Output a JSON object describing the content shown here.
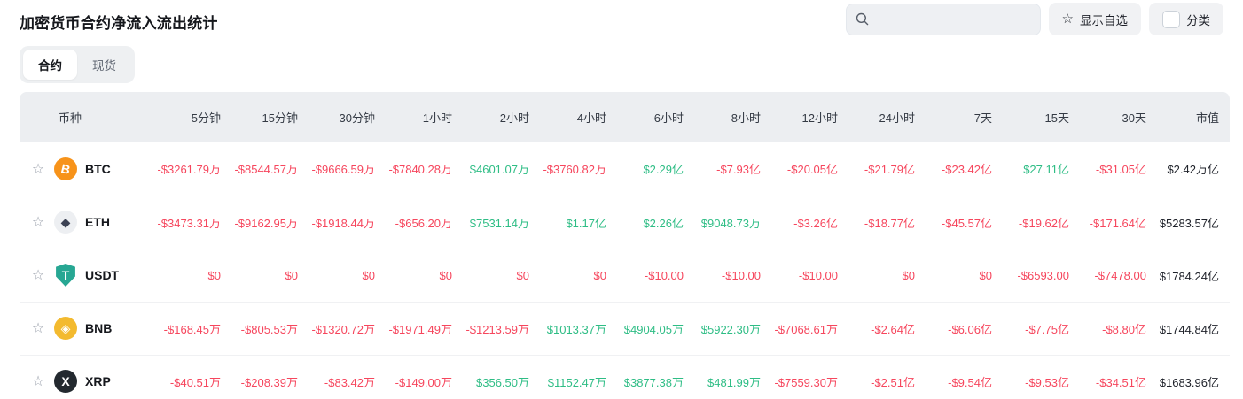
{
  "page": {
    "title": "加密货币合约净流入流出统计",
    "search_placeholder": "",
    "show_watchlist_label": "显示自选",
    "category_label": "分类"
  },
  "colors": {
    "positive": "#2ebd85",
    "negative": "#f6465d",
    "header_bg": "#eceef1"
  },
  "tabs": [
    {
      "label": "合约",
      "active": true
    },
    {
      "label": "现货",
      "active": false
    }
  ],
  "table": {
    "columns": [
      "币种",
      "5分钟",
      "15分钟",
      "30分钟",
      "1小时",
      "2小时",
      "4小时",
      "6小时",
      "8小时",
      "12小时",
      "24小时",
      "7天",
      "15天",
      "30天",
      "市值"
    ],
    "rows": [
      {
        "symbol": "BTC",
        "icon": {
          "glyph": "B",
          "bg": "#f7931a",
          "fg": "#ffffff",
          "shape": "circle",
          "tilt": true
        },
        "values": [
          {
            "text": "-$3261.79万",
            "color": "neg"
          },
          {
            "text": "-$8544.57万",
            "color": "neg"
          },
          {
            "text": "-$9666.59万",
            "color": "neg"
          },
          {
            "text": "-$7840.28万",
            "color": "neg"
          },
          {
            "text": "$4601.07万",
            "color": "pos"
          },
          {
            "text": "-$3760.82万",
            "color": "neg"
          },
          {
            "text": "$2.29亿",
            "color": "pos"
          },
          {
            "text": "-$7.93亿",
            "color": "neg"
          },
          {
            "text": "-$20.05亿",
            "color": "neg"
          },
          {
            "text": "-$21.79亿",
            "color": "neg"
          },
          {
            "text": "-$23.42亿",
            "color": "neg"
          },
          {
            "text": "$27.11亿",
            "color": "pos"
          },
          {
            "text": "-$31.05亿",
            "color": "neg"
          }
        ],
        "market_cap": "$2.42万亿"
      },
      {
        "symbol": "ETH",
        "icon": {
          "glyph": "◆",
          "bg": "#edeff2",
          "fg": "#3c4254",
          "shape": "circle",
          "tilt": false
        },
        "values": [
          {
            "text": "-$3473.31万",
            "color": "neg"
          },
          {
            "text": "-$9162.95万",
            "color": "neg"
          },
          {
            "text": "-$1918.44万",
            "color": "neg"
          },
          {
            "text": "-$656.20万",
            "color": "neg"
          },
          {
            "text": "$7531.14万",
            "color": "pos"
          },
          {
            "text": "$1.17亿",
            "color": "pos"
          },
          {
            "text": "$2.26亿",
            "color": "pos"
          },
          {
            "text": "$9048.73万",
            "color": "pos"
          },
          {
            "text": "-$3.26亿",
            "color": "neg"
          },
          {
            "text": "-$18.77亿",
            "color": "neg"
          },
          {
            "text": "-$45.57亿",
            "color": "neg"
          },
          {
            "text": "-$19.62亿",
            "color": "neg"
          },
          {
            "text": "-$171.64亿",
            "color": "neg"
          }
        ],
        "market_cap": "$5283.57亿"
      },
      {
        "symbol": "USDT",
        "icon": {
          "glyph": "T",
          "bg": "#27a793",
          "fg": "#ffffff",
          "shape": "shield",
          "tilt": false
        },
        "values": [
          {
            "text": "$0",
            "color": "neg"
          },
          {
            "text": "$0",
            "color": "neg"
          },
          {
            "text": "$0",
            "color": "neg"
          },
          {
            "text": "$0",
            "color": "neg"
          },
          {
            "text": "$0",
            "color": "neg"
          },
          {
            "text": "$0",
            "color": "neg"
          },
          {
            "text": "-$10.00",
            "color": "neg"
          },
          {
            "text": "-$10.00",
            "color": "neg"
          },
          {
            "text": "-$10.00",
            "color": "neg"
          },
          {
            "text": "$0",
            "color": "neg"
          },
          {
            "text": "$0",
            "color": "neg"
          },
          {
            "text": "-$6593.00",
            "color": "neg"
          },
          {
            "text": "-$7478.00",
            "color": "neg"
          }
        ],
        "market_cap": "$1784.24亿"
      },
      {
        "symbol": "BNB",
        "icon": {
          "glyph": "◈",
          "bg": "#f3ba2f",
          "fg": "#ffffff",
          "shape": "circle",
          "tilt": false
        },
        "values": [
          {
            "text": "-$168.45万",
            "color": "neg"
          },
          {
            "text": "-$805.53万",
            "color": "neg"
          },
          {
            "text": "-$1320.72万",
            "color": "neg"
          },
          {
            "text": "-$1971.49万",
            "color": "neg"
          },
          {
            "text": "-$1213.59万",
            "color": "neg"
          },
          {
            "text": "$1013.37万",
            "color": "pos"
          },
          {
            "text": "$4904.05万",
            "color": "pos"
          },
          {
            "text": "$5922.30万",
            "color": "pos"
          },
          {
            "text": "-$7068.61万",
            "color": "neg"
          },
          {
            "text": "-$2.64亿",
            "color": "neg"
          },
          {
            "text": "-$6.06亿",
            "color": "neg"
          },
          {
            "text": "-$7.75亿",
            "color": "neg"
          },
          {
            "text": "-$8.80亿",
            "color": "neg"
          }
        ],
        "market_cap": "$1744.84亿"
      },
      {
        "symbol": "XRP",
        "icon": {
          "glyph": "X",
          "bg": "#23292f",
          "fg": "#ffffff",
          "shape": "circle",
          "tilt": false
        },
        "values": [
          {
            "text": "-$40.51万",
            "color": "neg"
          },
          {
            "text": "-$208.39万",
            "color": "neg"
          },
          {
            "text": "-$83.42万",
            "color": "neg"
          },
          {
            "text": "-$149.00万",
            "color": "neg"
          },
          {
            "text": "$356.50万",
            "color": "pos"
          },
          {
            "text": "$1152.47万",
            "color": "pos"
          },
          {
            "text": "$3877.38万",
            "color": "pos"
          },
          {
            "text": "$481.99万",
            "color": "pos"
          },
          {
            "text": "-$7559.30万",
            "color": "neg"
          },
          {
            "text": "-$2.51亿",
            "color": "neg"
          },
          {
            "text": "-$9.54亿",
            "color": "neg"
          },
          {
            "text": "-$9.53亿",
            "color": "neg"
          },
          {
            "text": "-$34.51亿",
            "color": "neg"
          }
        ],
        "market_cap": "$1683.96亿"
      }
    ]
  }
}
